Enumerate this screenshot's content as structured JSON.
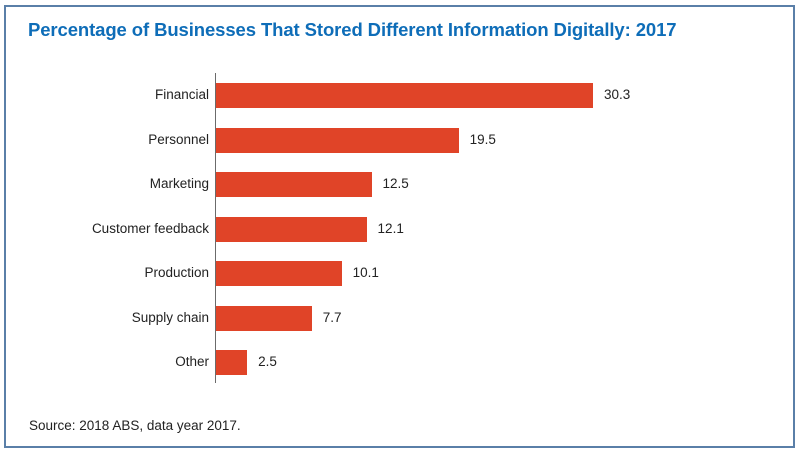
{
  "title": "Percentage of Businesses That Stored Different Information Digitally: 2017",
  "source": "Source: 2018 ABS, data year 2017.",
  "colors": {
    "bar": "#e04428",
    "title": "#0e6db8",
    "border": "#5a7fa8",
    "axis": "#6b6b6b"
  },
  "chart_data": {
    "type": "bar",
    "orientation": "horizontal",
    "title": "Percentage of Businesses That Stored Different Information Digitally: 2017",
    "categories": [
      "Financial",
      "Personnel",
      "Marketing",
      "Customer feedback",
      "Production",
      "Supply chain",
      "Other"
    ],
    "values": [
      30.3,
      19.5,
      12.5,
      12.1,
      10.1,
      7.7,
      2.5
    ],
    "value_labels": [
      "30.3",
      "19.5",
      "12.5",
      "12.1",
      "10.1",
      "7.7",
      "2.5"
    ],
    "xlabel": "",
    "ylabel": "",
    "xlim": [
      0,
      30.3
    ],
    "grid": false,
    "legend": null,
    "source": "Source: 2018 ABS, data year 2017."
  }
}
